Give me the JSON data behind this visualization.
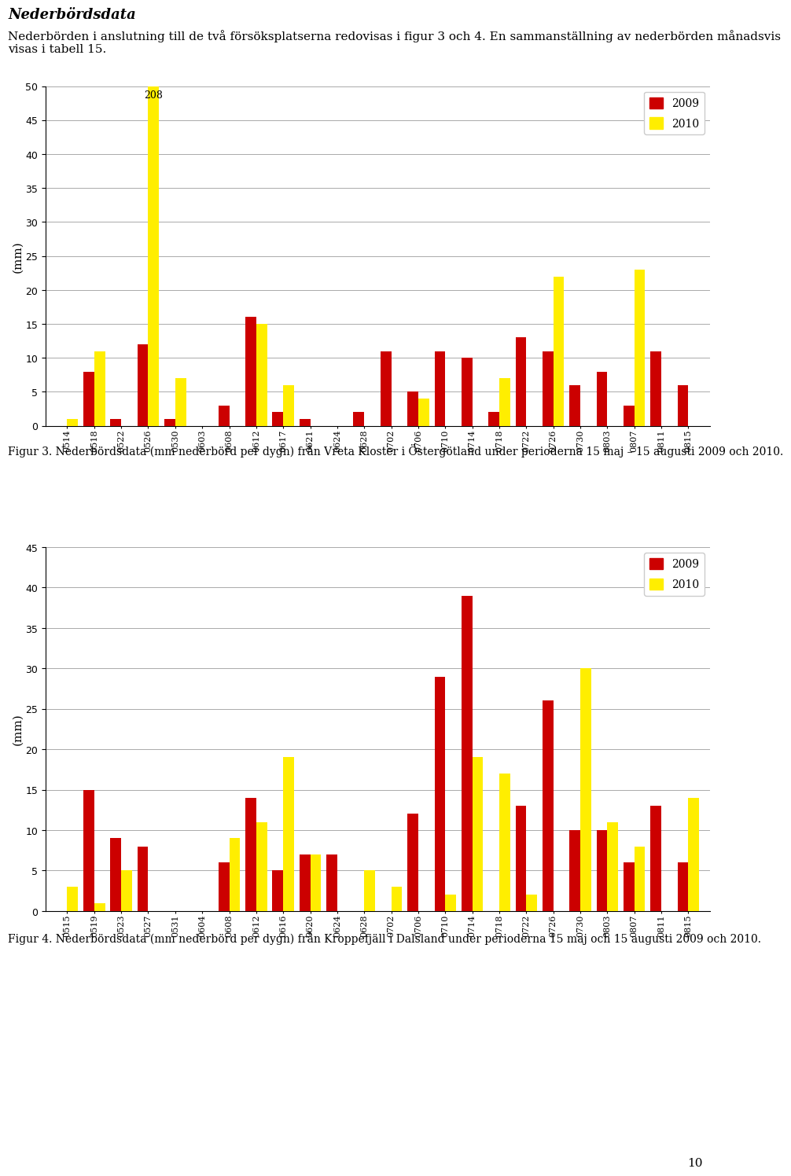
{
  "title_bold": "Nederbördsdata",
  "title_text": "Nederbörden i anslutning till de två försöksplatserna redovisas i figur 3 och 4. En sammanställning av nederbörden månadsvis visas i tabell 15.",
  "chart1": {
    "labels": [
      "0514",
      "0518",
      "0522",
      "0526",
      "0530",
      "0603",
      "0608",
      "0612",
      "0617",
      "0621",
      "0624",
      "0628",
      "0702",
      "0706",
      "0710",
      "0714",
      "0718",
      "0722",
      "0726",
      "0730",
      "0803",
      "0807",
      "0811",
      "0815"
    ],
    "values_2009": [
      0,
      8,
      1,
      12,
      1,
      0,
      3,
      16,
      2,
      1,
      0,
      2,
      11,
      5,
      11,
      10,
      2,
      13,
      11,
      6,
      8,
      3,
      11,
      6
    ],
    "values_2010": [
      1,
      11,
      0,
      50,
      7,
      0,
      0,
      15,
      6,
      0,
      0,
      0,
      0,
      4,
      0,
      0,
      7,
      0,
      22,
      0,
      0,
      23,
      0,
      0
    ],
    "values_2010_clipped": [
      1,
      11,
      0,
      50,
      7,
      0,
      0,
      15,
      6,
      0,
      0,
      0,
      0,
      4,
      0,
      0,
      7,
      0,
      22,
      0,
      0,
      23,
      0,
      0
    ],
    "ylim": [
      0,
      50
    ],
    "yticks": [
      0,
      5,
      10,
      15,
      20,
      25,
      30,
      35,
      40,
      45,
      50
    ],
    "ylabel": "(mm)",
    "annotation_label": "208",
    "annotation_idx": 3,
    "caption": "Figur 3. Nederbördsdata (mm nederbörd per dygn) från Vreta Kloster i Östergötland under perioderna 15 maj – 15 augusti 2009 och 2010."
  },
  "chart2": {
    "labels": [
      "0515",
      "0519",
      "0523",
      "0527",
      "0531",
      "0604",
      "0608",
      "0612",
      "0616",
      "0620",
      "0624",
      "0628",
      "0702",
      "0706",
      "0710",
      "0714",
      "0718",
      "0722",
      "0726",
      "0730",
      "0803",
      "0807",
      "0811",
      "0815"
    ],
    "values_2009": [
      0,
      15,
      9,
      8,
      0,
      0,
      6,
      14,
      5,
      7,
      7,
      0,
      0,
      12,
      29,
      39,
      0,
      13,
      26,
      10,
      10,
      6,
      13,
      6
    ],
    "values_2010": [
      3,
      1,
      5,
      0,
      0,
      0,
      9,
      11,
      19,
      7,
      0,
      5,
      3,
      0,
      2,
      19,
      17,
      2,
      0,
      30,
      11,
      8,
      0,
      14
    ],
    "ylim": [
      0,
      45
    ],
    "yticks": [
      0,
      5,
      10,
      15,
      20,
      25,
      30,
      35,
      40,
      45
    ],
    "ylabel": "(mm)",
    "caption": "Figur 4. Nederbördsdata (mm nederbörd per dygn) från Kroppefjäll i Dalsland under perioderna 15 maj och 15 augusti 2009 och 2010."
  },
  "color_2009": "#CC0000",
  "color_2010": "#FFEE00",
  "bar_width": 0.4,
  "background_color": "#ffffff",
  "grid_color": "#AAAAAA",
  "page_number": "10"
}
